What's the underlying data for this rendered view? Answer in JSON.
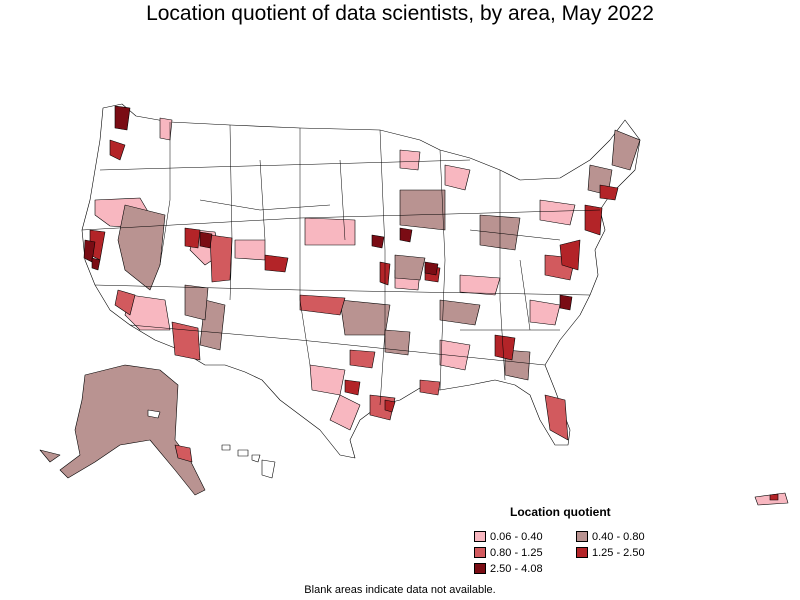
{
  "title": "Location quotient of data scientists, by area, May 2022",
  "legend": {
    "title": "Location quotient",
    "items": [
      {
        "label": "0.06 - 0.40",
        "color": "#f8b7c0"
      },
      {
        "label": "0.40 - 0.80",
        "color": "#b99391"
      },
      {
        "label": "0.80 - 1.25",
        "color": "#d25a5e"
      },
      {
        "label": "1.25 - 2.50",
        "color": "#b32428"
      },
      {
        "label": "2.50 - 4.08",
        "color": "#7a0c14"
      }
    ]
  },
  "footnote": "Blank areas indicate data not available."
}
